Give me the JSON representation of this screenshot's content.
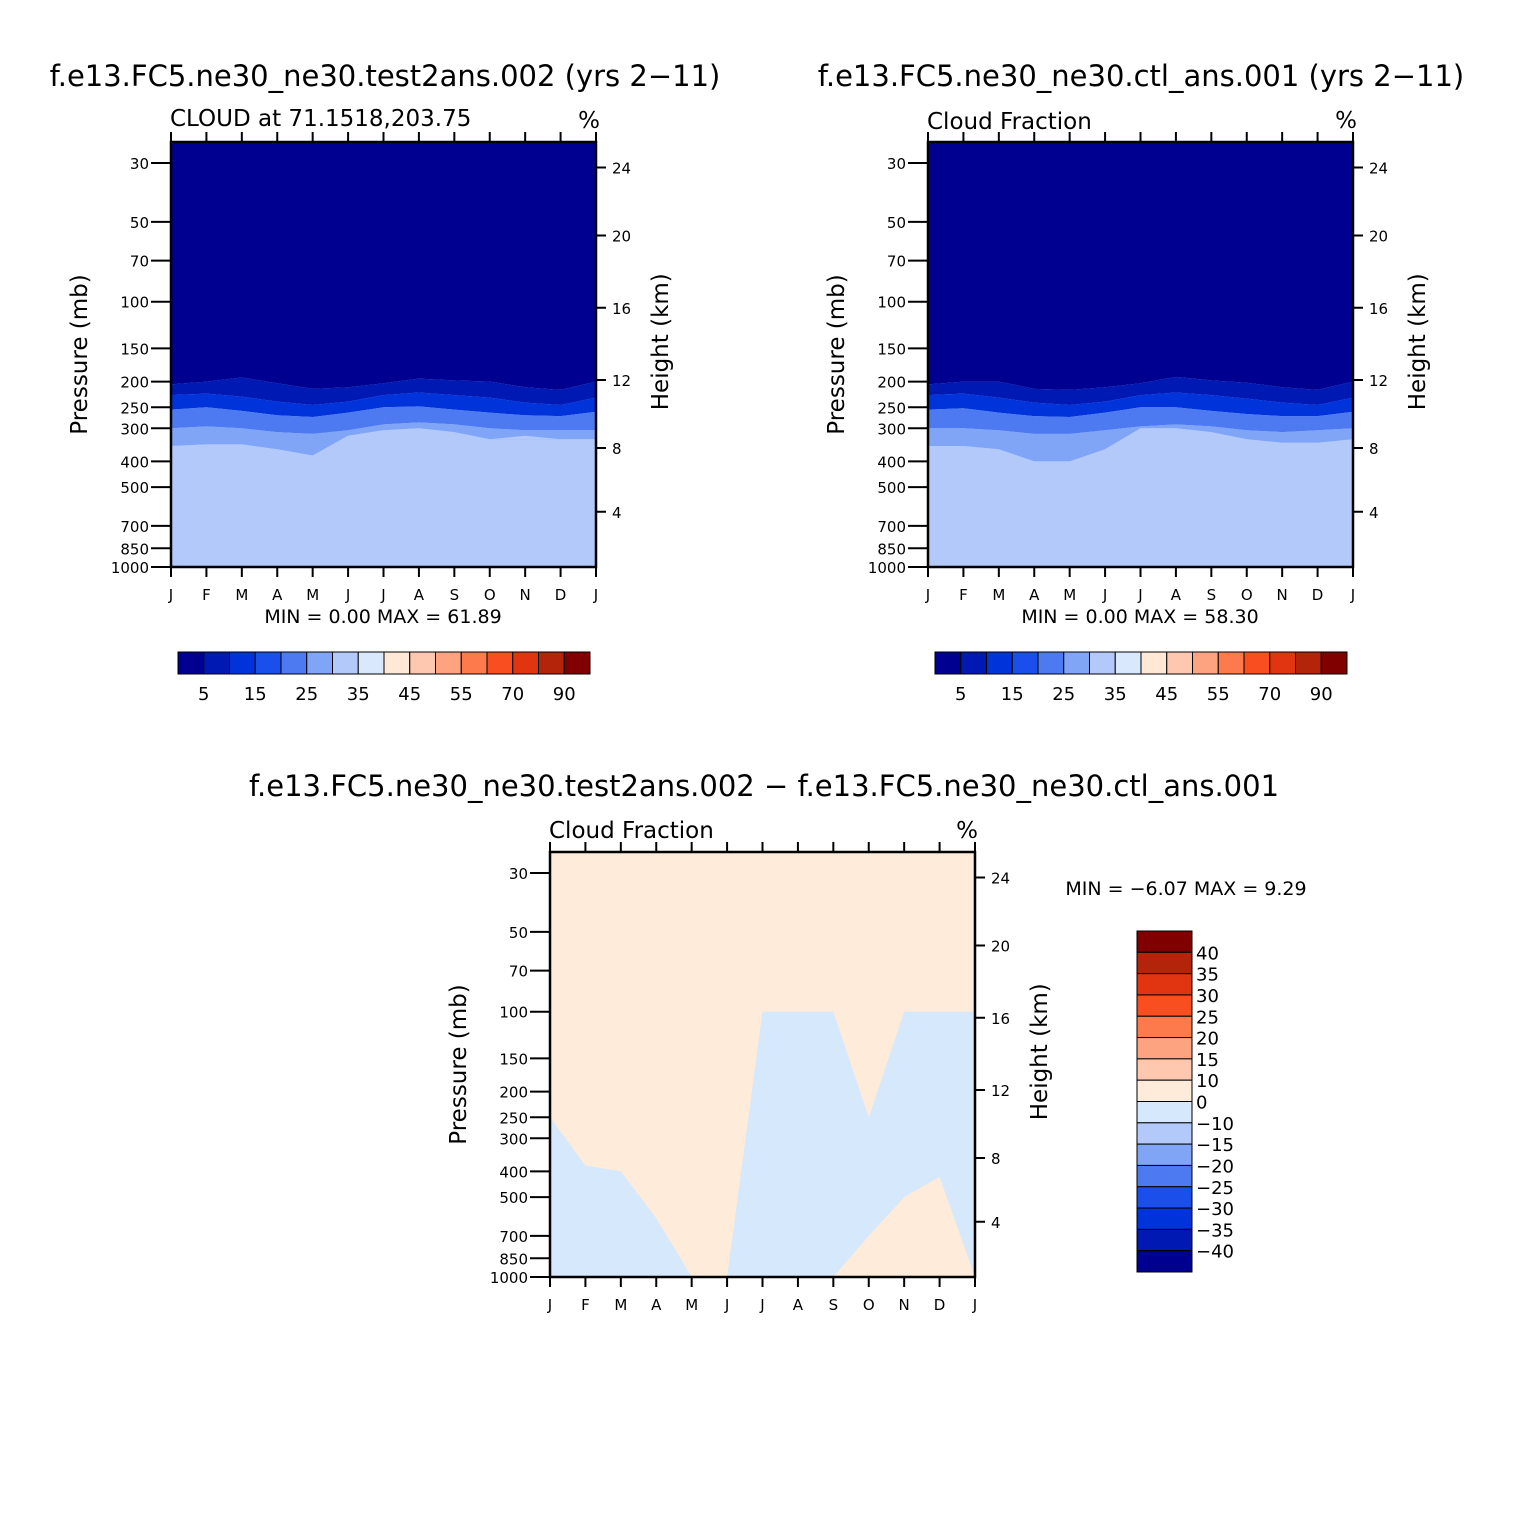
{
  "figure": {
    "panels": [
      {
        "id": "test",
        "title": "f.e13.FC5.ne30_ne30.test2ans.002 (yrs 2−11)",
        "subtitle": "CLOUD at 71.1518,203.75",
        "units": "%",
        "min_max": "MIN =    0.00  MAX =    61.89"
      },
      {
        "id": "control",
        "title": "f.e13.FC5.ne30_ne30.ctl_ans.001 (yrs 2−11)",
        "subtitle": "Cloud Fraction",
        "units": "%",
        "min_max": "MIN =    0.00  MAX =    58.30"
      },
      {
        "id": "difference",
        "title": "f.e13.FC5.ne30_ne30.test2ans.002 − f.e13.FC5.ne30_ne30.ctl_ans.001",
        "subtitle": "Cloud Fraction",
        "units": "%",
        "min_max": "MIN =   −6.07  MAX =     9.29"
      }
    ]
  },
  "chart_data": {
    "type": "heatmap",
    "x_ticks": [
      "J",
      "F",
      "M",
      "A",
      "M",
      "J",
      "J",
      "A",
      "S",
      "O",
      "N",
      "D",
      "J"
    ],
    "y_ticks_pressure": [
      30,
      50,
      70,
      100,
      150,
      200,
      250,
      300,
      400,
      500,
      700,
      850,
      1000
    ],
    "y_ticks_height": [
      24,
      20,
      16,
      12,
      8,
      4
    ],
    "y_scale": "log",
    "ylim_pressure": [
      1000,
      25
    ],
    "xlabel": "",
    "ylabel": "Pressure (mb)",
    "ylabel_right": "Height (km)",
    "colorbar_abs": {
      "colors": [
        "#000090",
        "#0019b3",
        "#0033d9",
        "#1a4fec",
        "#4d7af0",
        "#80a5f7",
        "#b3c9fa",
        "#d9e8fd",
        "#ffe8d6",
        "#fec7b0",
        "#fda380",
        "#fd7a4d",
        "#f94e1f",
        "#e03510",
        "#b3240b",
        "#800000"
      ],
      "labels": [
        "5",
        "15",
        "25",
        "35",
        "45",
        "55",
        "70",
        "90"
      ]
    },
    "colorbar_diff": {
      "colors": [
        "#000090",
        "#0019b3",
        "#0033d9",
        "#1a4fec",
        "#4d7af0",
        "#80a5f7",
        "#b3c9fa",
        "#d6e8fc",
        "#ffebd9",
        "#fec7b0",
        "#fda380",
        "#fd7a4d",
        "#f94e1f",
        "#e03510",
        "#b3240b",
        "#800000"
      ],
      "labels": [
        "40",
        "35",
        "30",
        "25",
        "20",
        "15",
        "10",
        "0",
        "−10",
        "−15",
        "−20",
        "−25",
        "−30",
        "−35",
        "−40"
      ]
    },
    "panels": [
      {
        "name": "test2ans.002",
        "bands": [
          {
            "color": "#000090",
            "top": [
              205,
              200,
              193,
              203,
              213,
              210,
              203,
              195,
              198,
              200,
              210,
              215,
              200
            ],
            "bottom": 1000
          },
          {
            "color": "#0019b3",
            "top": [
              225,
              222,
              228,
              238,
              245,
              238,
              225,
              220,
              225,
              230,
              240,
              245,
              230
            ],
            "bottom": 1000
          },
          {
            "color": "#0033d9",
            "top": [
              255,
              250,
              258,
              268,
              272,
              262,
              250,
              248,
              255,
              262,
              268,
              270,
              260
            ],
            "bottom": 1000
          },
          {
            "color": "#4d7af0",
            "top": [
              300,
              295,
              300,
              310,
              315,
              305,
              290,
              285,
              290,
              300,
              305,
              305,
              305
            ],
            "bottom": 1000
          },
          {
            "color": "#80a5f7",
            "top": [
              350,
              345,
              345,
              360,
              380,
              320,
              305,
              300,
              310,
              330,
              330,
              330,
              330
            ],
            "bottom": 1000
          },
          {
            "color": "#b3c9fa",
            "top": [
              990,
              990,
              990,
              995,
              1000,
              1000,
              360,
              300,
              330,
              330,
              320,
              330,
              960
            ],
            "bottom": 1000
          }
        ]
      },
      {
        "name": "ctl_ans.001",
        "bands": [
          {
            "color": "#000090",
            "top": [
              205,
              200,
              200,
              213,
              215,
              210,
              203,
              192,
              198,
              202,
              210,
              215,
              200
            ],
            "bottom": 1000
          },
          {
            "color": "#0019b3",
            "top": [
              225,
              222,
              230,
              240,
              245,
              238,
              225,
              220,
              225,
              232,
              240,
              245,
              230
            ],
            "bottom": 1000
          },
          {
            "color": "#0033d9",
            "top": [
              255,
              252,
              262,
              270,
              272,
              262,
              250,
              250,
              258,
              265,
              270,
              270,
              260
            ],
            "bottom": 1000
          },
          {
            "color": "#4d7af0",
            "top": [
              300,
              300,
              305,
              315,
              315,
              305,
              295,
              290,
              295,
              305,
              310,
              305,
              300
            ],
            "bottom": 1000
          },
          {
            "color": "#80a5f7",
            "top": [
              350,
              350,
              360,
              400,
              400,
              360,
              300,
              300,
              310,
              330,
              340,
              340,
              330
            ],
            "bottom": 1000
          },
          {
            "color": "#b3c9fa",
            "top": [
              1000,
              1000,
              1000,
              1000,
              1000,
              1000,
              330,
              310,
              330,
              370,
              420,
              440,
              900
            ],
            "bottom": 1000
          }
        ]
      },
      {
        "name": "difference",
        "bands": [
          {
            "color": "#d6e8fc",
            "top": [
              250,
              380,
              400,
              600,
              1000,
              1000,
              100,
              100,
              100,
              250,
              100,
              100,
              100
            ],
            "bottom": 1000
          },
          {
            "color": "#ffebd9",
            "top": [
              1000,
              1000,
              1000,
              1000,
              1000,
              1000,
              1000,
              1000,
              1000,
              700,
              500,
              420,
              1000
            ],
            "bottom": 1000
          }
        ]
      }
    ]
  }
}
